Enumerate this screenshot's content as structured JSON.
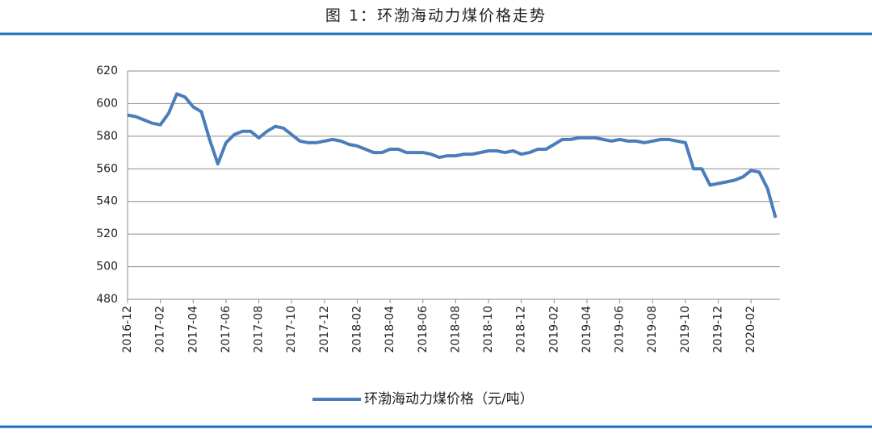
{
  "chart_data": {
    "type": "line",
    "title": "图 1：环渤海动力煤价格走势",
    "categories": [
      "2016-12",
      null,
      null,
      null,
      "2017-02",
      null,
      null,
      null,
      "2017-04",
      null,
      null,
      null,
      "2017-06",
      null,
      null,
      null,
      "2017-08",
      null,
      null,
      null,
      "2017-10",
      null,
      null,
      null,
      "2017-12",
      null,
      null,
      null,
      "2018-02",
      null,
      null,
      null,
      "2018-04",
      null,
      null,
      null,
      "2018-06",
      null,
      null,
      null,
      "2018-08",
      null,
      null,
      null,
      "2018-10",
      null,
      null,
      null,
      "2018-12",
      null,
      null,
      null,
      "2019-02",
      null,
      null,
      null,
      "2019-04",
      null,
      null,
      null,
      "2019-06",
      null,
      null,
      null,
      "2019-08",
      null,
      null,
      null,
      "2019-10",
      null,
      null,
      null,
      "2019-12",
      null,
      null,
      null,
      "2020-02",
      null,
      null,
      null
    ],
    "series": [
      {
        "name": "环渤海动力煤价格（元/吨）",
        "color": "#4a7ebb",
        "values": [
          593,
          592,
          590,
          588,
          587,
          594,
          606,
          604,
          598,
          595,
          578,
          563,
          576,
          581,
          583,
          583,
          579,
          583,
          586,
          585,
          581,
          577,
          576,
          576,
          577,
          578,
          577,
          575,
          574,
          572,
          570,
          570,
          572,
          572,
          570,
          570,
          570,
          569,
          567,
          568,
          568,
          569,
          569,
          570,
          571,
          571,
          570,
          571,
          569,
          570,
          572,
          572,
          575,
          578,
          578,
          579,
          579,
          579,
          578,
          577,
          578,
          577,
          577,
          576,
          577,
          578,
          578,
          577,
          576,
          560,
          560,
          550,
          551,
          552,
          553,
          555,
          559,
          558,
          548,
          530
        ]
      }
    ],
    "ylim": [
      480,
      620
    ],
    "yticks": [
      480,
      500,
      520,
      540,
      560,
      580,
      600,
      620
    ],
    "grid": true
  }
}
